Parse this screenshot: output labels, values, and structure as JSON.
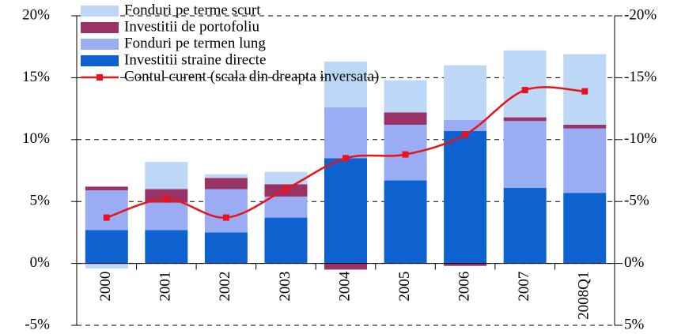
{
  "chart_data": {
    "type": "bar",
    "categories": [
      "2000",
      "2001",
      "2002",
      "2003",
      "2004",
      "2005",
      "2006",
      "2007",
      "2008Q1"
    ],
    "series": [
      {
        "name": "Investitii straine directe",
        "color": "#0e62cf",
        "values": [
          2.7,
          2.7,
          2.5,
          3.7,
          8.5,
          6.7,
          10.7,
          6.1,
          5.7
        ]
      },
      {
        "name": "Fonduri pe termen lung",
        "color": "#99acf4",
        "values": [
          3.2,
          2.2,
          3.5,
          1.7,
          4.1,
          4.5,
          0.9,
          5.4,
          5.2
        ]
      },
      {
        "name": "Investitii de portofoliu",
        "color": "#993366",
        "values": [
          0.3,
          1.1,
          0.9,
          1.0,
          -0.5,
          1.0,
          -0.2,
          0.3,
          0.3
        ]
      },
      {
        "name": "Fonduri pe terme scurt",
        "color": "#bdd7f7",
        "values": [
          -0.4,
          2.2,
          0.3,
          1.0,
          3.7,
          2.6,
          4.4,
          5.4,
          5.7
        ]
      },
      {
        "name": "Contul curent (scala din dreapta inversata)",
        "color": "#e8141b",
        "type": "line",
        "axis": "y2",
        "values": [
          -3.7,
          -5.2,
          -3.7,
          -6.0,
          -8.5,
          -8.8,
          -10.4,
          -14.0,
          -13.9
        ]
      }
    ],
    "ylim": [
      -5,
      20
    ],
    "yticks": [
      {
        "value": -5,
        "label": "-5%"
      },
      {
        "value": 0,
        "label": "0%"
      },
      {
        "value": 5,
        "label": "5%"
      },
      {
        "value": 10,
        "label": "10%"
      },
      {
        "value": 15,
        "label": "15%"
      },
      {
        "value": 20,
        "label": "20%"
      }
    ],
    "y2lim": [
      5,
      -20
    ],
    "y2ticks": [
      {
        "value": 5,
        "label": "5%"
      },
      {
        "value": 0,
        "label": "0%"
      },
      {
        "value": -5,
        "label": "-5%"
      },
      {
        "value": -10,
        "label": "-10%"
      },
      {
        "value": -15,
        "label": "-15%"
      },
      {
        "value": -20,
        "label": "-20%"
      }
    ],
    "grid": true,
    "legend": "top-left"
  }
}
